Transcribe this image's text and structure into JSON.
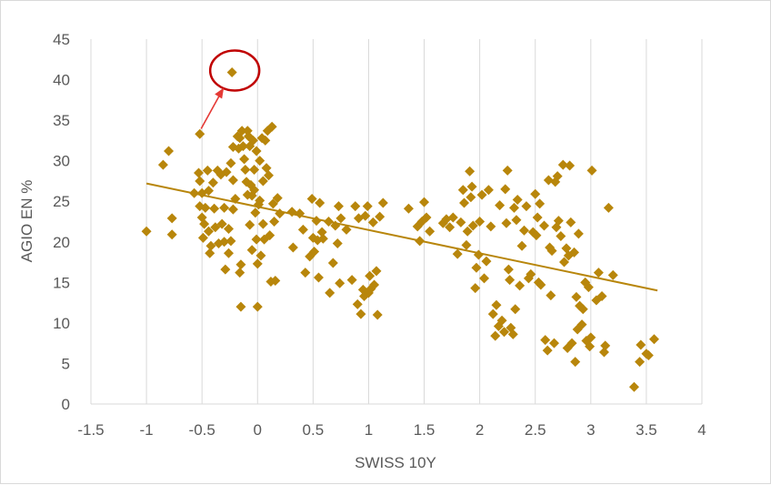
{
  "chart_data": {
    "type": "scatter",
    "title": "",
    "xlabel": "SWISS 10Y",
    "ylabel": "AGIO EN %",
    "xlim": [
      -1.5,
      4
    ],
    "ylim": [
      0,
      45
    ],
    "x_ticks": [
      "-1.5",
      "-1",
      "-0.5",
      "0",
      "0.5",
      "1",
      "1.5",
      "2",
      "2.5",
      "3",
      "3.5",
      "4"
    ],
    "y_ticks": [
      "0",
      "5",
      "10",
      "15",
      "20",
      "25",
      "30",
      "35",
      "40",
      "45"
    ],
    "grid": "vertical",
    "legend": "none",
    "marker": "diamond",
    "colors": {
      "points": "#B8860B",
      "trendline": "#B8860B",
      "highlight": "#C00000",
      "arrow": "#E53935",
      "grid": "#d9d9d9"
    },
    "trendline": {
      "type": "linear",
      "x": [
        -1.0,
        3.6
      ],
      "y": [
        27.2,
        14.0
      ]
    },
    "highlight": {
      "x": -0.23,
      "y": 40.9,
      "annotation": "circled outlier with arrow"
    },
    "points": [
      [
        -1.0,
        21.3
      ],
      [
        -0.85,
        29.5
      ],
      [
        -0.8,
        31.2
      ],
      [
        -0.77,
        22.9
      ],
      [
        -0.77,
        20.9
      ],
      [
        -0.57,
        26.0
      ],
      [
        -0.53,
        28.5
      ],
      [
        -0.52,
        27.5
      ],
      [
        -0.52,
        24.4
      ],
      [
        -0.52,
        33.3
      ],
      [
        -0.5,
        26.0
      ],
      [
        -0.5,
        23.0
      ],
      [
        -0.49,
        20.5
      ],
      [
        -0.48,
        22.2
      ],
      [
        -0.47,
        24.2
      ],
      [
        -0.45,
        28.8
      ],
      [
        -0.44,
        26.3
      ],
      [
        -0.44,
        21.3
      ],
      [
        -0.43,
        18.6
      ],
      [
        -0.42,
        19.5
      ],
      [
        -0.4,
        27.3
      ],
      [
        -0.39,
        24.1
      ],
      [
        -0.38,
        21.8
      ],
      [
        -0.36,
        28.8
      ],
      [
        -0.35,
        19.8
      ],
      [
        -0.33,
        28.3
      ],
      [
        -0.32,
        22.2
      ],
      [
        -0.3,
        24.2
      ],
      [
        -0.3,
        20.0
      ],
      [
        -0.29,
        16.6
      ],
      [
        -0.28,
        28.6
      ],
      [
        -0.26,
        21.6
      ],
      [
        -0.26,
        18.6
      ],
      [
        -0.24,
        29.7
      ],
      [
        -0.24,
        20.1
      ],
      [
        -0.22,
        31.7
      ],
      [
        -0.22,
        27.6
      ],
      [
        -0.22,
        24.0
      ],
      [
        -0.2,
        25.3
      ],
      [
        -0.18,
        33.0
      ],
      [
        -0.17,
        31.5
      ],
      [
        -0.16,
        32.8
      ],
      [
        -0.16,
        16.2
      ],
      [
        -0.15,
        17.2
      ],
      [
        -0.15,
        12.0
      ],
      [
        -0.14,
        33.7
      ],
      [
        -0.13,
        31.8
      ],
      [
        -0.12,
        30.2
      ],
      [
        -0.11,
        28.9
      ],
      [
        -0.1,
        27.4
      ],
      [
        -0.09,
        33.7
      ],
      [
        -0.09,
        25.8
      ],
      [
        -0.08,
        33.0
      ],
      [
        -0.07,
        31.8
      ],
      [
        -0.07,
        22.1
      ],
      [
        -0.06,
        27.0
      ],
      [
        -0.05,
        25.7
      ],
      [
        -0.05,
        19.0
      ],
      [
        -0.04,
        32.5
      ],
      [
        -0.03,
        28.9
      ],
      [
        -0.03,
        26.4
      ],
      [
        -0.02,
        23.6
      ],
      [
        -0.01,
        31.2
      ],
      [
        -0.01,
        20.3
      ],
      [
        0.0,
        17.3
      ],
      [
        0.0,
        12.0
      ],
      [
        0.01,
        24.6
      ],
      [
        0.02,
        30.0
      ],
      [
        0.02,
        25.1
      ],
      [
        0.03,
        18.3
      ],
      [
        0.04,
        32.8
      ],
      [
        0.05,
        27.5
      ],
      [
        0.05,
        22.2
      ],
      [
        0.06,
        20.3
      ],
      [
        0.07,
        32.5
      ],
      [
        0.08,
        29.1
      ],
      [
        0.09,
        33.7
      ],
      [
        0.1,
        28.2
      ],
      [
        0.11,
        20.8
      ],
      [
        0.12,
        15.1
      ],
      [
        0.13,
        34.2
      ],
      [
        0.14,
        24.7
      ],
      [
        0.15,
        22.5
      ],
      [
        0.16,
        15.2
      ],
      [
        0.18,
        25.4
      ],
      [
        0.2,
        23.5
      ],
      [
        0.31,
        23.7
      ],
      [
        0.32,
        19.3
      ],
      [
        0.38,
        23.5
      ],
      [
        0.41,
        21.5
      ],
      [
        0.43,
        16.2
      ],
      [
        0.47,
        18.2
      ],
      [
        0.49,
        25.3
      ],
      [
        0.5,
        20.5
      ],
      [
        0.51,
        18.8
      ],
      [
        0.53,
        22.6
      ],
      [
        0.54,
        20.2
      ],
      [
        0.55,
        15.6
      ],
      [
        0.56,
        24.8
      ],
      [
        0.58,
        21.2
      ],
      [
        0.59,
        20.4
      ],
      [
        0.64,
        22.5
      ],
      [
        0.65,
        13.7
      ],
      [
        0.68,
        17.4
      ],
      [
        0.7,
        22.0
      ],
      [
        0.72,
        19.8
      ],
      [
        0.73,
        24.4
      ],
      [
        0.74,
        14.9
      ],
      [
        0.75,
        22.9
      ],
      [
        0.8,
        21.5
      ],
      [
        0.85,
        15.3
      ],
      [
        0.88,
        24.4
      ],
      [
        0.9,
        12.3
      ],
      [
        0.91,
        22.9
      ],
      [
        0.93,
        11.1
      ],
      [
        0.95,
        14.1
      ],
      [
        0.96,
        13.3
      ],
      [
        0.97,
        23.2
      ],
      [
        0.99,
        24.4
      ],
      [
        1.0,
        13.7
      ],
      [
        1.01,
        15.8
      ],
      [
        1.02,
        14.2
      ],
      [
        1.04,
        22.4
      ],
      [
        1.05,
        14.7
      ],
      [
        1.07,
        16.4
      ],
      [
        1.08,
        11.0
      ],
      [
        1.1,
        23.1
      ],
      [
        1.13,
        24.8
      ],
      [
        1.36,
        24.1
      ],
      [
        1.44,
        21.9
      ],
      [
        1.46,
        20.1
      ],
      [
        1.48,
        22.5
      ],
      [
        1.5,
        24.9
      ],
      [
        1.52,
        23.0
      ],
      [
        1.55,
        21.3
      ],
      [
        1.67,
        22.3
      ],
      [
        1.7,
        22.8
      ],
      [
        1.73,
        21.8
      ],
      [
        1.76,
        23.0
      ],
      [
        1.8,
        18.5
      ],
      [
        1.83,
        22.4
      ],
      [
        1.85,
        26.4
      ],
      [
        1.86,
        24.8
      ],
      [
        1.88,
        19.6
      ],
      [
        1.89,
        21.3
      ],
      [
        1.91,
        28.7
      ],
      [
        1.92,
        25.5
      ],
      [
        1.93,
        26.8
      ],
      [
        1.94,
        22.0
      ],
      [
        1.96,
        14.3
      ],
      [
        1.97,
        16.8
      ],
      [
        1.99,
        18.4
      ],
      [
        2.0,
        22.5
      ],
      [
        2.02,
        25.8
      ],
      [
        2.04,
        15.5
      ],
      [
        2.06,
        17.6
      ],
      [
        2.08,
        26.4
      ],
      [
        2.1,
        21.9
      ],
      [
        2.12,
        11.1
      ],
      [
        2.14,
        8.4
      ],
      [
        2.15,
        12.2
      ],
      [
        2.17,
        9.6
      ],
      [
        2.18,
        24.5
      ],
      [
        2.2,
        10.3
      ],
      [
        2.22,
        8.9
      ],
      [
        2.23,
        26.5
      ],
      [
        2.24,
        22.3
      ],
      [
        2.25,
        28.8
      ],
      [
        2.26,
        16.6
      ],
      [
        2.27,
        15.3
      ],
      [
        2.28,
        9.4
      ],
      [
        2.3,
        8.6
      ],
      [
        2.31,
        24.2
      ],
      [
        2.32,
        11.7
      ],
      [
        2.33,
        22.7
      ],
      [
        2.34,
        25.2
      ],
      [
        2.36,
        14.6
      ],
      [
        2.38,
        19.5
      ],
      [
        2.4,
        21.4
      ],
      [
        2.42,
        24.4
      ],
      [
        2.44,
        15.5
      ],
      [
        2.46,
        16.0
      ],
      [
        2.48,
        21.2
      ],
      [
        2.5,
        25.9
      ],
      [
        2.51,
        20.8
      ],
      [
        2.52,
        23.0
      ],
      [
        2.53,
        15.0
      ],
      [
        2.54,
        24.7
      ],
      [
        2.55,
        14.7
      ],
      [
        2.58,
        22.0
      ],
      [
        2.59,
        7.9
      ],
      [
        2.61,
        6.6
      ],
      [
        2.62,
        27.6
      ],
      [
        2.63,
        19.3
      ],
      [
        2.64,
        13.4
      ],
      [
        2.65,
        18.9
      ],
      [
        2.67,
        7.5
      ],
      [
        2.68,
        27.4
      ],
      [
        2.69,
        21.8
      ],
      [
        2.7,
        28.1
      ],
      [
        2.71,
        22.6
      ],
      [
        2.73,
        20.7
      ],
      [
        2.75,
        29.5
      ],
      [
        2.76,
        17.5
      ],
      [
        2.78,
        19.2
      ],
      [
        2.79,
        6.9
      ],
      [
        2.8,
        18.3
      ],
      [
        2.81,
        29.4
      ],
      [
        2.82,
        22.4
      ],
      [
        2.83,
        7.5
      ],
      [
        2.85,
        18.7
      ],
      [
        2.86,
        5.2
      ],
      [
        2.87,
        13.2
      ],
      [
        2.88,
        9.2
      ],
      [
        2.89,
        21.0
      ],
      [
        2.9,
        12.1
      ],
      [
        2.92,
        9.8
      ],
      [
        2.93,
        11.7
      ],
      [
        2.95,
        15.0
      ],
      [
        2.96,
        7.8
      ],
      [
        2.98,
        14.4
      ],
      [
        2.99,
        7.1
      ],
      [
        3.0,
        8.2
      ],
      [
        3.01,
        28.8
      ],
      [
        3.05,
        12.8
      ],
      [
        3.07,
        16.2
      ],
      [
        3.1,
        13.3
      ],
      [
        3.12,
        6.4
      ],
      [
        3.13,
        7.2
      ],
      [
        3.16,
        24.2
      ],
      [
        3.2,
        15.9
      ],
      [
        3.39,
        2.1
      ],
      [
        3.44,
        5.2
      ],
      [
        3.45,
        7.3
      ],
      [
        3.5,
        6.2
      ],
      [
        3.52,
        6.0
      ],
      [
        3.57,
        8.0
      ]
    ]
  }
}
